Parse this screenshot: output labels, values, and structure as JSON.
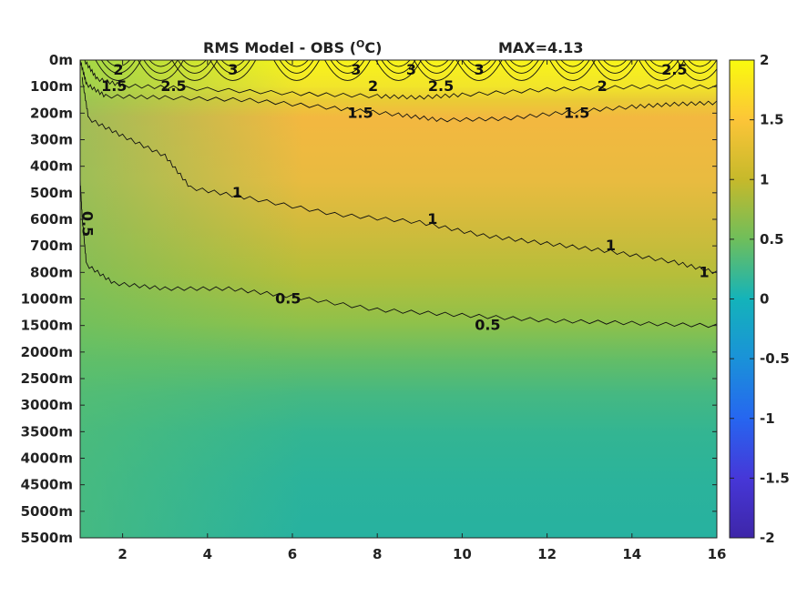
{
  "chart_data": {
    "type": "heatmap",
    "title": "RMS Model - OBS (",
    "title_sup": "O",
    "title_end": "C)",
    "max_label": "MAX=4.13",
    "x_ticks": [
      "2",
      "4",
      "6",
      "8",
      "10",
      "12",
      "14",
      "16"
    ],
    "x_tick_values": [
      2,
      4,
      6,
      8,
      10,
      12,
      14,
      16
    ],
    "xlim": [
      1,
      16
    ],
    "y_ticks": [
      "0m",
      "100m",
      "200m",
      "300m",
      "400m",
      "500m",
      "600m",
      "700m",
      "800m",
      "1000m",
      "1500m",
      "2000m",
      "2500m",
      "3000m",
      "3500m",
      "4000m",
      "4500m",
      "5000m",
      "5500m"
    ],
    "colorbar": {
      "ticks": [
        "2",
        "1.5",
        "1",
        "0.5",
        "0",
        "-0.5",
        "-1",
        "-1.5",
        "-2"
      ],
      "range": [
        -2,
        2
      ],
      "colormap": "parula"
    },
    "depth_levels": [
      "0m",
      "100m",
      "200m",
      "300m",
      "400m",
      "500m",
      "600m",
      "700m",
      "800m",
      "1000m",
      "1500m",
      "2000m",
      "2500m",
      "3000m",
      "3500m",
      "4000m",
      "4500m",
      "5000m",
      "5500m"
    ],
    "values_by_depth": [
      2.6,
      2.1,
      1.6,
      1.3,
      1.25,
      1.2,
      1.1,
      1.0,
      0.9,
      0.75,
      0.5,
      0.4,
      0.32,
      0.28,
      0.3,
      0.3,
      0.28,
      0.28,
      0.25
    ],
    "contour_labels": [
      {
        "text": "2",
        "x": 1.9,
        "depth": "0m"
      },
      {
        "text": "2.5",
        "x": 3.2,
        "depth": "100m"
      },
      {
        "text": "3",
        "x": 4.6,
        "depth": "0m"
      },
      {
        "text": "3",
        "x": 7.5,
        "depth": "0m"
      },
      {
        "text": "3",
        "x": 8.8,
        "depth": "0m"
      },
      {
        "text": "2.5",
        "x": 9.5,
        "depth": "100m"
      },
      {
        "text": "3",
        "x": 10.4,
        "depth": "0m"
      },
      {
        "text": "2.5",
        "x": 15.0,
        "depth": "0m"
      },
      {
        "text": "1.5",
        "x": 1.8,
        "depth": "100m"
      },
      {
        "text": "2",
        "x": 7.9,
        "depth": "100m"
      },
      {
        "text": "2",
        "x": 13.3,
        "depth": "100m"
      },
      {
        "text": "1.5",
        "x": 7.6,
        "depth": "200m"
      },
      {
        "text": "1.5",
        "x": 12.7,
        "depth": "200m"
      },
      {
        "text": "1",
        "x": 4.7,
        "depth": "500m"
      },
      {
        "text": "1",
        "x": 9.3,
        "depth": "600m"
      },
      {
        "text": "1",
        "x": 13.5,
        "depth": "700m"
      },
      {
        "text": "1",
        "x": 15.7,
        "depth": "800m"
      },
      {
        "text": "0.5",
        "x": 1.1,
        "depth": "600m"
      },
      {
        "text": "0.5",
        "x": 5.9,
        "depth": "1000m"
      },
      {
        "text": "0.5",
        "x": 10.6,
        "depth": "1500m"
      }
    ]
  }
}
